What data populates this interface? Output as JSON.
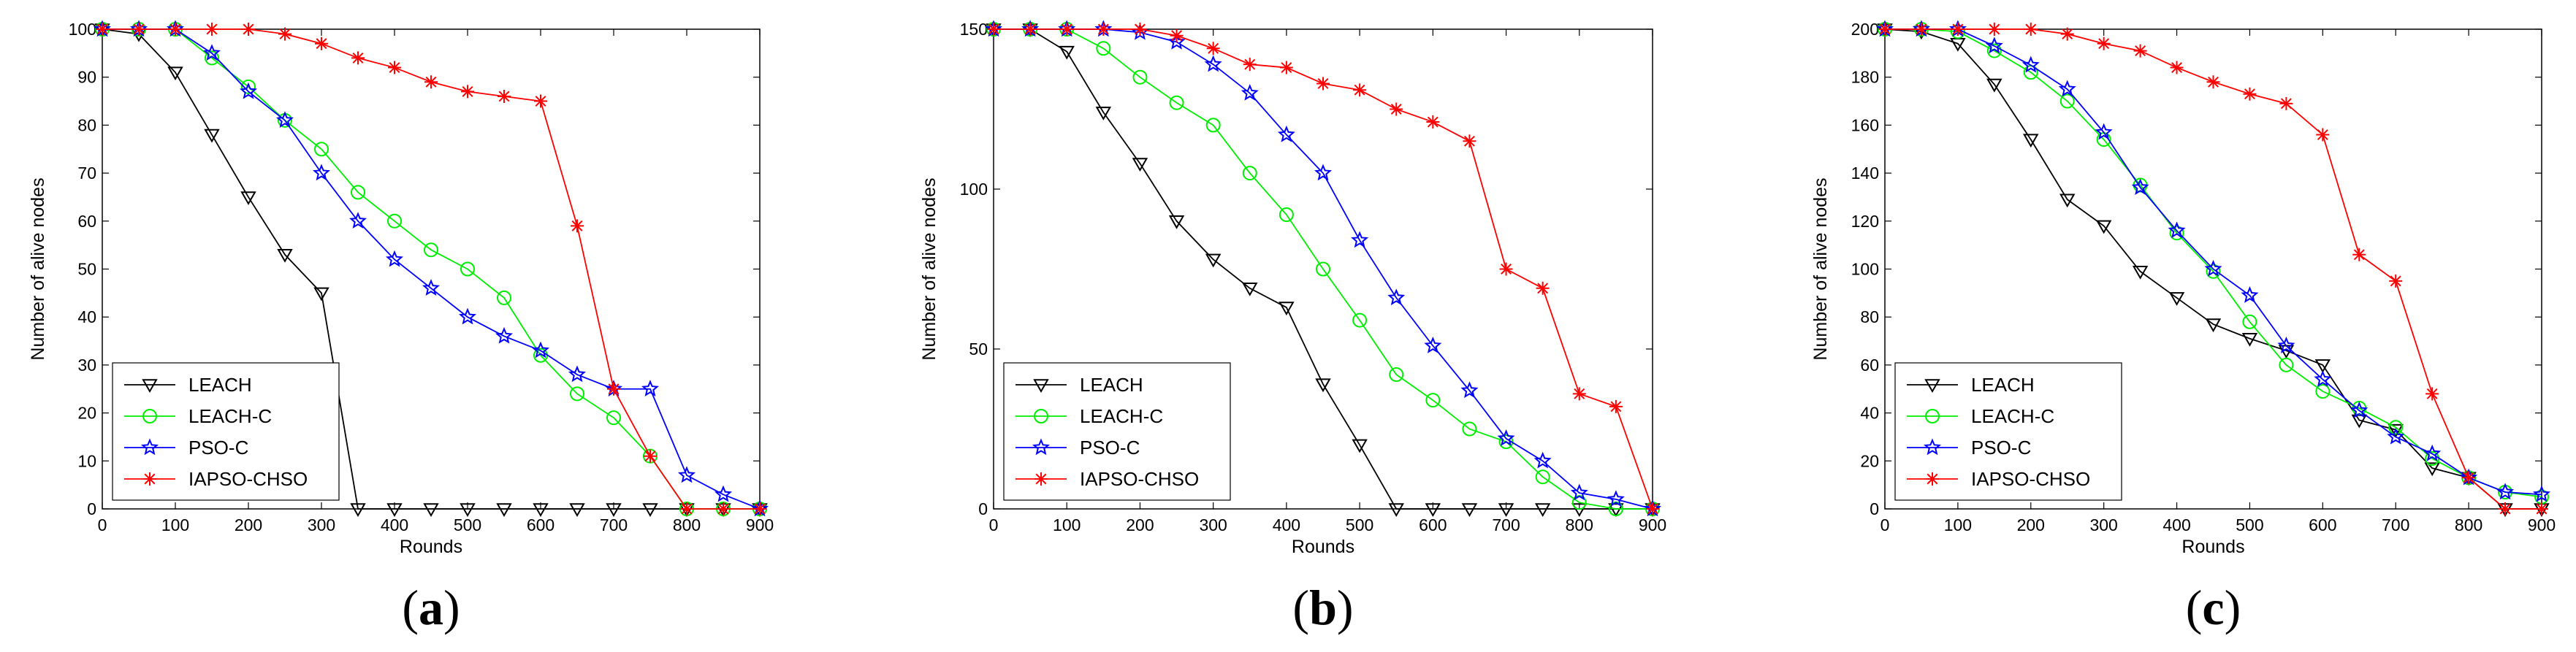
{
  "chart_data": [
    {
      "type": "line",
      "panel_label": "a",
      "xlabel": "Rounds",
      "ylabel": "Number of alive nodes",
      "xlim": [
        0,
        900
      ],
      "ylim": [
        0,
        100
      ],
      "xticks": [
        0,
        100,
        200,
        300,
        400,
        500,
        600,
        700,
        800,
        900
      ],
      "yticks": [
        0,
        10,
        20,
        30,
        40,
        50,
        60,
        70,
        80,
        90,
        100
      ],
      "legend_position": "bottom-left",
      "series": [
        {
          "name": "LEACH",
          "color": "#000000",
          "marker": "triangle-down",
          "x": [
            0,
            50,
            100,
            150,
            200,
            250,
            300,
            350,
            400,
            450,
            500,
            550,
            600,
            650,
            700,
            750,
            800,
            850,
            900
          ],
          "y": [
            100,
            99,
            91,
            78,
            65,
            53,
            45,
            0,
            0,
            0,
            0,
            0,
            0,
            0,
            0,
            0,
            0,
            0,
            0
          ]
        },
        {
          "name": "LEACH-C",
          "color": "#00ee00",
          "marker": "circle",
          "x": [
            0,
            50,
            100,
            150,
            200,
            250,
            300,
            350,
            400,
            450,
            500,
            550,
            600,
            650,
            700,
            750,
            800,
            850,
            900
          ],
          "y": [
            100,
            100,
            100,
            94,
            88,
            81,
            75,
            66,
            60,
            54,
            50,
            44,
            32,
            24,
            19,
            11,
            0,
            0,
            0
          ]
        },
        {
          "name": "PSO-C",
          "color": "#0000ff",
          "marker": "star",
          "x": [
            0,
            50,
            100,
            150,
            200,
            250,
            300,
            350,
            400,
            450,
            500,
            550,
            600,
            650,
            700,
            750,
            800,
            850,
            900
          ],
          "y": [
            100,
            100,
            100,
            95,
            87,
            81,
            70,
            60,
            52,
            46,
            40,
            36,
            33,
            28,
            25,
            25,
            7,
            3,
            0
          ]
        },
        {
          "name": "IAPSO-CHSO",
          "color": "#ff0000",
          "marker": "asterisk",
          "x": [
            0,
            50,
            100,
            150,
            200,
            250,
            300,
            350,
            400,
            450,
            500,
            550,
            600,
            650,
            700,
            750,
            800,
            850,
            900
          ],
          "y": [
            100,
            100,
            100,
            100,
            100,
            99,
            97,
            94,
            92,
            89,
            87,
            86,
            85,
            59,
            25,
            11,
            0,
            0,
            0
          ]
        }
      ]
    },
    {
      "type": "line",
      "panel_label": "b",
      "xlabel": "Rounds",
      "ylabel": "Number of alive nodes",
      "xlim": [
        0,
        900
      ],
      "ylim": [
        0,
        150
      ],
      "xticks": [
        0,
        100,
        200,
        300,
        400,
        500,
        600,
        700,
        800,
        900
      ],
      "yticks": [
        0,
        50,
        100,
        150
      ],
      "legend_position": "bottom-left",
      "series": [
        {
          "name": "LEACH",
          "color": "#000000",
          "marker": "triangle-down",
          "x": [
            0,
            50,
            100,
            150,
            200,
            250,
            300,
            350,
            400,
            450,
            500,
            550,
            600,
            650,
            700,
            750,
            800,
            850,
            900
          ],
          "y": [
            150,
            150,
            143,
            124,
            108,
            90,
            78,
            69,
            63,
            39,
            20,
            0,
            0,
            0,
            0,
            0,
            0,
            0,
            0
          ]
        },
        {
          "name": "LEACH-C",
          "color": "#00ee00",
          "marker": "circle",
          "x": [
            0,
            50,
            100,
            150,
            200,
            250,
            300,
            350,
            400,
            450,
            500,
            550,
            600,
            650,
            700,
            750,
            800,
            850,
            900
          ],
          "y": [
            150,
            150,
            150,
            144,
            135,
            127,
            120,
            105,
            92,
            75,
            59,
            42,
            34,
            25,
            21,
            10,
            2,
            0,
            0
          ]
        },
        {
          "name": "PSO-C",
          "color": "#0000ff",
          "marker": "star",
          "x": [
            0,
            50,
            100,
            150,
            200,
            250,
            300,
            350,
            400,
            450,
            500,
            550,
            600,
            650,
            700,
            750,
            800,
            850,
            900
          ],
          "y": [
            150,
            150,
            150,
            150,
            149,
            146,
            139,
            130,
            117,
            105,
            84,
            66,
            51,
            37,
            22,
            15,
            5,
            3,
            0
          ]
        },
        {
          "name": "IAPSO-CHSO",
          "color": "#ff0000",
          "marker": "asterisk",
          "x": [
            0,
            50,
            100,
            150,
            200,
            250,
            300,
            350,
            400,
            450,
            500,
            550,
            600,
            650,
            700,
            750,
            800,
            850,
            900
          ],
          "y": [
            150,
            150,
            150,
            150,
            150,
            148,
            144,
            139,
            138,
            133,
            131,
            125,
            121,
            115,
            75,
            69,
            36,
            32,
            0
          ]
        }
      ]
    },
    {
      "type": "line",
      "panel_label": "c",
      "xlabel": "Rounds",
      "ylabel": "Number of alive nodes",
      "xlim": [
        0,
        900
      ],
      "ylim": [
        0,
        200
      ],
      "xticks": [
        0,
        100,
        200,
        300,
        400,
        500,
        600,
        700,
        800,
        900
      ],
      "yticks": [
        0,
        20,
        40,
        60,
        80,
        100,
        120,
        140,
        160,
        180,
        200
      ],
      "legend_position": "bottom-left",
      "series": [
        {
          "name": "LEACH",
          "color": "#000000",
          "marker": "triangle-down",
          "x": [
            0,
            50,
            100,
            150,
            200,
            250,
            300,
            350,
            400,
            450,
            500,
            550,
            600,
            650,
            700,
            750,
            800,
            850,
            900
          ],
          "y": [
            200,
            199,
            194,
            177,
            154,
            129,
            118,
            99,
            88,
            77,
            71,
            66,
            60,
            37,
            33,
            17,
            13,
            0,
            0
          ]
        },
        {
          "name": "LEACH-C",
          "color": "#00ee00",
          "marker": "circle",
          "x": [
            0,
            50,
            100,
            150,
            200,
            250,
            300,
            350,
            400,
            450,
            500,
            550,
            600,
            650,
            700,
            750,
            800,
            850,
            900
          ],
          "y": [
            200,
            200,
            199,
            191,
            182,
            170,
            154,
            135,
            115,
            99,
            78,
            60,
            49,
            42,
            34,
            21,
            13,
            7,
            5
          ]
        },
        {
          "name": "PSO-C",
          "color": "#0000ff",
          "marker": "star",
          "x": [
            0,
            50,
            100,
            150,
            200,
            250,
            300,
            350,
            400,
            450,
            500,
            550,
            600,
            650,
            700,
            750,
            800,
            850,
            900
          ],
          "y": [
            200,
            200,
            200,
            193,
            185,
            175,
            157,
            134,
            116,
            100,
            89,
            68,
            54,
            41,
            30,
            23,
            13,
            7,
            6
          ]
        },
        {
          "name": "IAPSO-CHSO",
          "color": "#ff0000",
          "marker": "asterisk",
          "x": [
            0,
            50,
            100,
            150,
            200,
            250,
            300,
            350,
            400,
            450,
            500,
            550,
            600,
            650,
            700,
            750,
            800,
            850,
            900
          ],
          "y": [
            200,
            200,
            200,
            200,
            200,
            198,
            194,
            191,
            184,
            178,
            173,
            169,
            156,
            106,
            95,
            48,
            13,
            0,
            0
          ]
        }
      ]
    }
  ]
}
